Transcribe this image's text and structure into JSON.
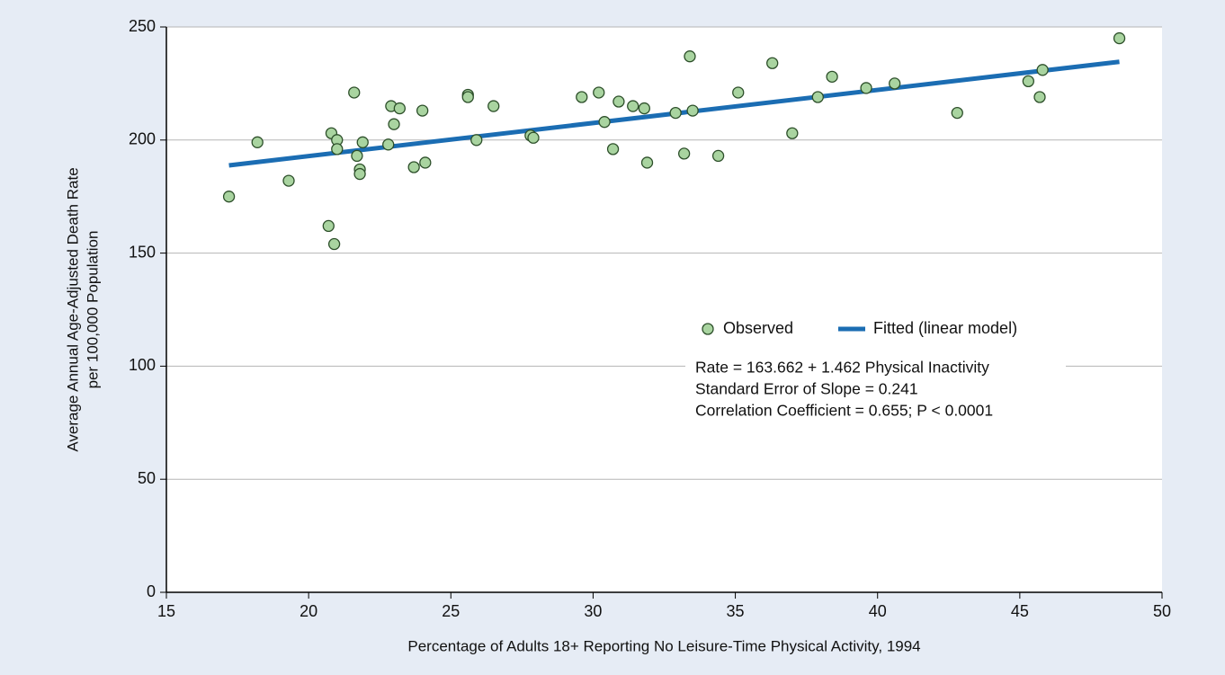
{
  "chart_data": {
    "type": "scatter",
    "xlabel": "Percentage of Adults 18+ Reporting No Leisure-Time Physical Activity, 1994",
    "ylabel": [
      "Average Annual Age-Adjusted Death Rate",
      "per 100,000 Population"
    ],
    "xlim": [
      15,
      50
    ],
    "xticks": [
      15,
      20,
      25,
      30,
      35,
      40,
      45,
      50
    ],
    "ylim": [
      0,
      250
    ],
    "yticks": [
      0,
      50,
      100,
      150,
      200,
      250
    ],
    "grid": true,
    "series": [
      {
        "name": "Observed",
        "type": "scatter",
        "color": "#a9d4a0",
        "x": [
          17.2,
          18.2,
          19.3,
          20.7,
          20.9,
          20.8,
          21.0,
          21.0,
          21.6,
          21.7,
          21.8,
          21.8,
          21.9,
          22.8,
          22.9,
          23.0,
          23.2,
          23.7,
          24.0,
          24.1,
          25.6,
          25.6,
          25.9,
          26.5,
          27.8,
          27.9,
          29.6,
          30.2,
          30.4,
          30.7,
          30.9,
          31.4,
          31.8,
          31.9,
          32.9,
          33.2,
          33.4,
          33.5,
          34.4,
          35.1,
          36.3,
          37.0,
          37.9,
          38.4,
          39.6,
          40.6,
          42.8,
          45.3,
          45.7,
          45.8,
          48.5
        ],
        "values": [
          175,
          199,
          182,
          162,
          154,
          203,
          200,
          196,
          221,
          193,
          187,
          185,
          199,
          198,
          215,
          207,
          214,
          188,
          213,
          190,
          220,
          219,
          200,
          215,
          202,
          201,
          219,
          221,
          208,
          196,
          217,
          215,
          214,
          190,
          212,
          194,
          237,
          213,
          193,
          221,
          234,
          203,
          219,
          228,
          223,
          225,
          212,
          226,
          219,
          231,
          245
        ]
      },
      {
        "name": "Fitted (linear model)",
        "type": "line",
        "color": "#1b6db3",
        "x": [
          17.2,
          48.5
        ],
        "values": [
          188.8,
          234.6
        ]
      }
    ],
    "annotations": [
      "Rate = 163.662 + 1.462 Physical Inactivity",
      "Standard Error of Slope = 0.241",
      "Correlation Coefficient = 0.655; P < 0.0001"
    ]
  }
}
